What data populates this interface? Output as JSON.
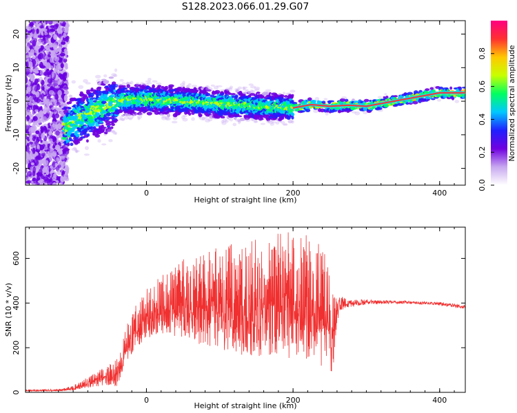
{
  "title": "S128.2023.066.01.29.G07",
  "colors": {
    "snr_line": "#f03030",
    "frame": "#000000"
  },
  "chart_data": [
    {
      "type": "heatmap",
      "xlabel": "Height of straight line (km)",
      "ylabel": "Frequency (Hz)",
      "xlim": [
        -165,
        435
      ],
      "ylim": [
        -25,
        24
      ],
      "x_ticks": [
        0,
        200,
        400
      ],
      "y_ticks": [
        -20,
        -10,
        0,
        10,
        20
      ],
      "colorbar": {
        "label": "Normalized spectral amplitude",
        "range": [
          0,
          1
        ],
        "ticks": [
          0.0,
          0.2,
          0.4,
          0.6,
          0.8
        ],
        "tick_labels": [
          "0.0",
          "0.2",
          "0.4",
          "0.6",
          "0.8"
        ],
        "colormap": [
          "#ffffff",
          "#c8a8f0",
          "#7000e0",
          "#2020ff",
          "#00c8ff",
          "#00ff60",
          "#c8ff00",
          "#ffc800",
          "#ff3030",
          "#ff0080"
        ]
      },
      "ridge": {
        "x": [
          -110,
          -90,
          -70,
          -50,
          -40,
          -30,
          -20,
          0,
          50,
          100,
          150,
          200,
          225,
          250,
          275,
          300,
          325,
          350,
          375,
          400,
          435
        ],
        "freq": [
          -8,
          -5,
          -3,
          -1,
          0,
          0.3,
          0.5,
          0.5,
          0,
          -0.8,
          -1.5,
          -2,
          -1,
          -1.5,
          -1.2,
          -1.5,
          -0.5,
          0.5,
          1.5,
          2.5,
          2.5
        ]
      }
    },
    {
      "type": "line",
      "xlabel": "Height of straight line (km)",
      "ylabel": "SNR (10 * v/v)",
      "xlim": [
        -165,
        435
      ],
      "ylim": [
        0,
        740
      ],
      "x_ticks": [
        0,
        200,
        400
      ],
      "y_ticks": [
        0,
        200,
        400,
        600
      ],
      "series": [
        {
          "envelope_x": [
            -165,
            -120,
            -100,
            -80,
            -60,
            -40,
            -30,
            -20,
            -10,
            0,
            20,
            50,
            100,
            150,
            200,
            230,
            245,
            255,
            260,
            265,
            275,
            300,
            350,
            400,
            435
          ],
          "envelope_low": [
            5,
            5,
            8,
            20,
            30,
            25,
            120,
            170,
            200,
            240,
            260,
            240,
            180,
            160,
            150,
            130,
            100,
            80,
            330,
            320,
            350,
            380,
            390,
            380,
            360
          ],
          "envelope_high": [
            12,
            15,
            30,
            70,
            110,
            150,
            280,
            350,
            420,
            470,
            520,
            600,
            650,
            700,
            740,
            720,
            620,
            440,
            420,
            430,
            420,
            415,
            410,
            405,
            390
          ]
        }
      ]
    }
  ]
}
